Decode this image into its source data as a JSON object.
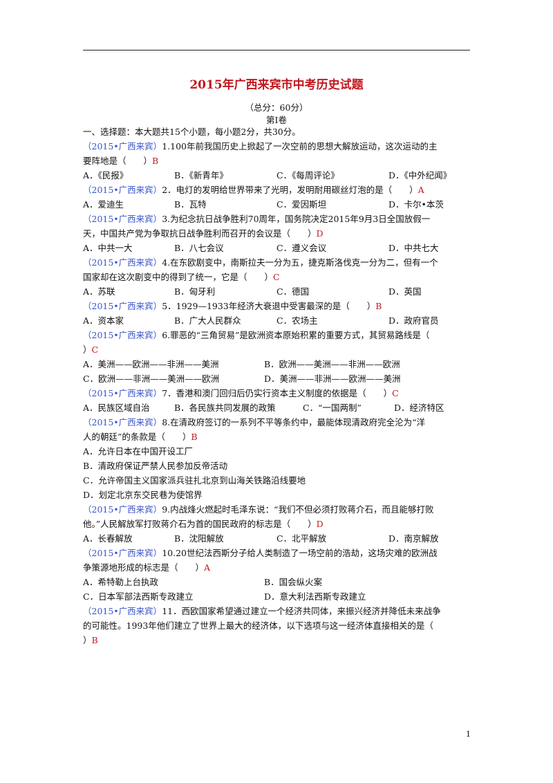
{
  "title": "2015年广西来宾市中考历史试题",
  "total_score": "（总分：60分）",
  "volume": "第Ⅰ卷",
  "section_heading": "一、选择题：本大题共15个小题，每小题2分，共30分。",
  "page_number": "1",
  "questions": [
    {
      "source": "（2015•广西来宾）",
      "stem": [
        "1.100年前我国历史上掀起了一次空前的思想大解放运动，这次运动的主",
        "要阵地是（　　）"
      ],
      "answer": "B",
      "options": [
        "A．《民报》",
        "B．《新青年》",
        "C．《每周评论》",
        "D．《中外纪闻》"
      ]
    },
    {
      "source": "（2015•广西来宾）",
      "stem": [
        "2．电灯的发明给世界带来了光明，发明耐用碳丝灯泡的是（　　）"
      ],
      "answer": "A",
      "options": [
        "A．爱迪生",
        "B．瓦特",
        "C．爱因斯坦",
        "D．卡尔•本茨"
      ]
    },
    {
      "source": "（2015•广西来宾）",
      "stem": [
        "3.为纪念抗日战争胜利70周年，国务院决定2015年9月3日全国放假一",
        "天，中国共产党为争取抗日战争胜利而召开的会议是（　　）"
      ],
      "answer": "D",
      "options": [
        "A．中共一大",
        "B．八七会议",
        "C．遵义会议",
        "D．中共七大"
      ]
    },
    {
      "source": "（2015•广西来宾）",
      "stem": [
        "4.在东欧剧变中，南斯拉夫一分为五，捷克斯洛伐克一分为二，但有一个",
        "国家却在这次剧变中的得到了统一，它是（　　）"
      ],
      "answer": "C",
      "options": [
        "A．苏联",
        "B．匈牙利",
        "C．德国",
        "D．英国"
      ]
    },
    {
      "source": "（2015•广西来宾）",
      "stem": [
        "5．1929—1933年经济大衰退中受害最深的是（　　）"
      ],
      "answer": "B",
      "options": [
        "A．资本家",
        "B．广大人民群众",
        "C．农场主",
        "D．政府官员"
      ]
    },
    {
      "source": "（2015•广西来宾）",
      "stem": [
        "6.罪恶的“三角贸易”是欧洲资本原始积累的重要方式，其贸易路线是（",
        "）"
      ],
      "answer": "C",
      "options": [
        "A．美洲——欧洲——非洲——美洲",
        "B．欧洲——美洲——非洲——欧洲",
        "C．欧洲——非洲——美洲——欧洲",
        "D．美洲——非洲——欧洲——美洲"
      ]
    },
    {
      "source": "（2015•广西来宾）",
      "stem": [
        "7．香港和澳门回归后仍实行资本主义制度的依据是（　　）"
      ],
      "answer": "C",
      "options": [
        "A．民族区域自治",
        "B．各民族共同发展的政策",
        "C．“一国两制”",
        "D．经济特区"
      ]
    },
    {
      "source": "（2015•广西来宾）",
      "stem": [
        "8.在清政府签订的一系列不平等条约中，最能体现清政府完全沦为“洋",
        "人的朝廷”的条款是（　　）"
      ],
      "answer": "B",
      "options": [
        "A．允许日本在中国开设工厂",
        "B．清政府保证严禁人民参加反帝活动",
        "C．允许帝国主义国家派兵驻扎北京到山海关铁路沿线要地",
        "D．划定北京东交民巷为使馆界"
      ]
    },
    {
      "source": "（2015•广西来宾）",
      "stem": [
        "9.内战烽火燃起时毛泽东说：“我们不但必须打败蒋介石，而且能够打败",
        "他。”人民解放军打败蒋介石为首的国民政府的标志是（　　）"
      ],
      "answer": "D",
      "options": [
        "A．长春解放",
        "B．沈阳解放",
        "C．北平解放",
        "D．南京解放"
      ]
    },
    {
      "source": "（2015•广西来宾）",
      "stem": [
        "10.20世纪法西斯分子给人类制造了一场空前的浩劫，这场灾难的欧洲战",
        "争策源地形成的标志是（　　）"
      ],
      "answer": "A",
      "options": [
        "A．希特勒上台执政",
        "B．国会纵火案",
        "C．日本军部法西斯专政建立",
        "D．意大利法西斯专政建立"
      ]
    },
    {
      "source": "（2015•广西来宾）",
      "stem": [
        "11．西欧国家希望通过建立一个经济共同体，来振兴经济并降低未来战争",
        "的可能性。1993年他们建立了世界上最大的经济体，以下选项与这一经济体直接相关的是（",
        "）"
      ],
      "answer": "B",
      "options": []
    }
  ]
}
